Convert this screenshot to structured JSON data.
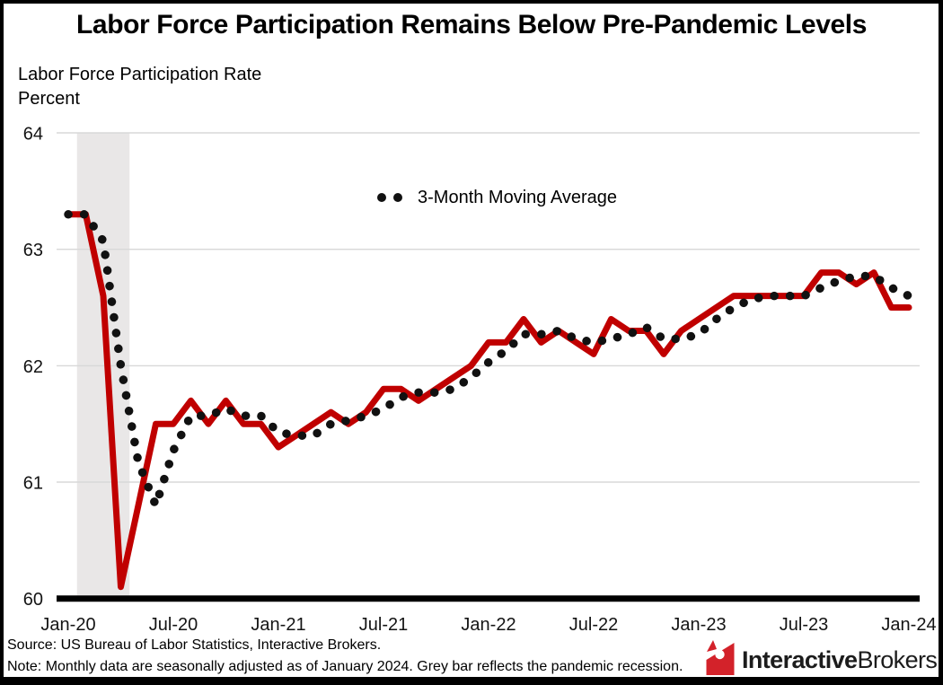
{
  "title": "Labor Force Participation Remains Below Pre-Pandemic Levels",
  "subtitle_line1": "Labor Force Participation Rate",
  "subtitle_line2": "Percent",
  "legend": {
    "label": "3-Month Moving Average"
  },
  "footer": {
    "source": "Source: US Bureau of Labor Statistics, Interactive Brokers.",
    "note": "Note: Monthly data are seasonally adjusted as of January 2024. Grey bar reflects the pandemic recession.",
    "logo_bold": "Interactive",
    "logo_regular": "Brokers"
  },
  "colors": {
    "line": "#c00000",
    "dots": "#111111",
    "recession": "#e9e7e7",
    "grid": "#d8d8d8",
    "axis": "#000000",
    "logo_red": "#d3222a"
  },
  "chart_data": {
    "type": "line",
    "title": "Labor Force Participation Remains Below Pre-Pandemic Levels",
    "xlabel": "",
    "ylabel": "Percent",
    "ylim": [
      60,
      64
    ],
    "y_ticks": [
      60,
      61,
      62,
      63,
      64
    ],
    "grid": true,
    "legend_position": "top-center-inside",
    "x_ticks": [
      {
        "label": "Jan-20",
        "month": 0
      },
      {
        "label": "Jul-20",
        "month": 6
      },
      {
        "label": "Jan-21",
        "month": 12
      },
      {
        "label": "Jul-21",
        "month": 18
      },
      {
        "label": "Jan-22",
        "month": 24
      },
      {
        "label": "Jul-22",
        "month": 30
      },
      {
        "label": "Jan-23",
        "month": 36
      },
      {
        "label": "Jul-23",
        "month": 42
      },
      {
        "label": "Jan-24",
        "month": 48
      }
    ],
    "months": [
      "Jan-20",
      "Feb-20",
      "Mar-20",
      "Apr-20",
      "May-20",
      "Jun-20",
      "Jul-20",
      "Aug-20",
      "Sep-20",
      "Oct-20",
      "Nov-20",
      "Dec-20",
      "Jan-21",
      "Feb-21",
      "Mar-21",
      "Apr-21",
      "May-21",
      "Jun-21",
      "Jul-21",
      "Aug-21",
      "Sep-21",
      "Oct-21",
      "Nov-21",
      "Dec-21",
      "Jan-22",
      "Feb-22",
      "Mar-22",
      "Apr-22",
      "May-22",
      "Jun-22",
      "Jul-22",
      "Aug-22",
      "Sep-22",
      "Oct-22",
      "Nov-22",
      "Dec-22",
      "Jan-23",
      "Feb-23",
      "Mar-23",
      "Apr-23",
      "May-23",
      "Jun-23",
      "Jul-23",
      "Aug-23",
      "Sep-23",
      "Oct-23",
      "Nov-23",
      "Dec-23",
      "Jan-24"
    ],
    "series": [
      {
        "name": "Labor Force Participation Rate",
        "style": "solid",
        "values": [
          63.3,
          63.3,
          62.6,
          60.1,
          60.8,
          61.5,
          61.5,
          61.7,
          61.5,
          61.7,
          61.5,
          61.5,
          61.3,
          61.4,
          61.5,
          61.6,
          61.5,
          61.6,
          61.8,
          61.8,
          61.7,
          61.8,
          61.9,
          62.0,
          62.2,
          62.2,
          62.4,
          62.2,
          62.3,
          62.2,
          62.1,
          62.4,
          62.3,
          62.3,
          62.1,
          62.3,
          62.4,
          62.5,
          62.6,
          62.6,
          62.6,
          62.6,
          62.6,
          62.8,
          62.8,
          62.7,
          62.8,
          62.5,
          62.5
        ]
      },
      {
        "name": "3-Month Moving Average",
        "style": "dotted",
        "values": [
          63.3,
          63.3,
          63.07,
          62.0,
          61.17,
          60.8,
          61.27,
          61.57,
          61.57,
          61.63,
          61.57,
          61.57,
          61.43,
          61.4,
          61.4,
          61.5,
          61.53,
          61.57,
          61.63,
          61.73,
          61.77,
          61.77,
          61.8,
          61.9,
          62.03,
          62.13,
          62.27,
          62.27,
          62.3,
          62.23,
          62.2,
          62.23,
          62.27,
          62.33,
          62.23,
          62.23,
          62.27,
          62.4,
          62.5,
          62.57,
          62.6,
          62.6,
          62.6,
          62.67,
          62.73,
          62.77,
          62.77,
          62.67,
          62.6
        ]
      }
    ],
    "recession_band": {
      "label": "pandemic recession",
      "from_month": 0.5,
      "to_month": 3.5
    }
  }
}
